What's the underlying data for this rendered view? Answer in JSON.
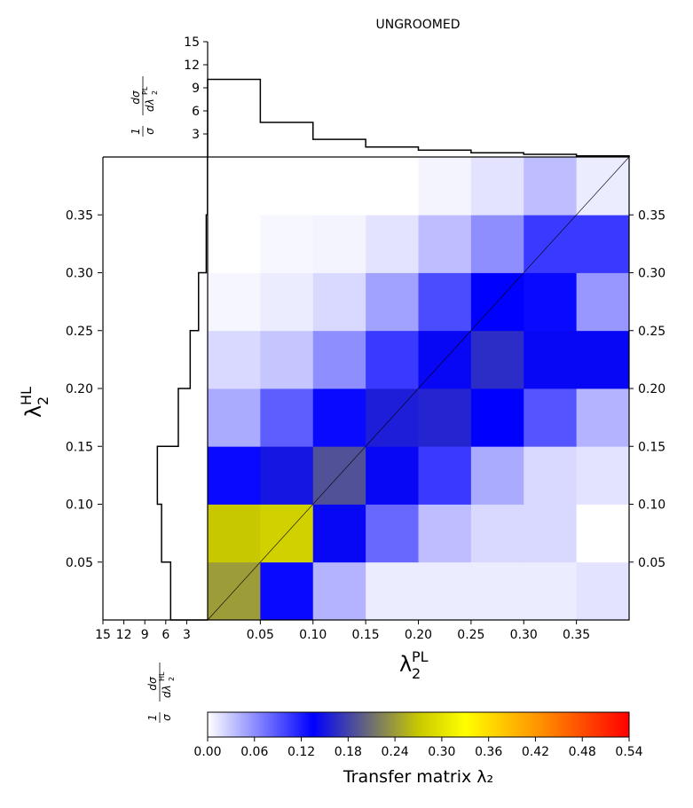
{
  "chart_data": {
    "type": "heatmap",
    "title": "UNGROOMED",
    "xlabel": {
      "base": "λ",
      "sub": "2",
      "sup": "PL"
    },
    "ylabel": {
      "base": "λ",
      "sub": "2",
      "sup": "HL"
    },
    "xlim": [
      0,
      0.4
    ],
    "ylim": [
      0,
      0.4
    ],
    "x_ticks": [
      "0.05",
      "0.10",
      "0.15",
      "0.20",
      "0.25",
      "0.30",
      "0.35"
    ],
    "y_ticks": [
      "0.05",
      "0.10",
      "0.15",
      "0.20",
      "0.25",
      "0.30",
      "0.35"
    ],
    "bin_edges": [
      0,
      0.05,
      0.1,
      0.15,
      0.2,
      0.25,
      0.3,
      0.35,
      0.4
    ],
    "matrix_rows_bottom_to_top": [
      [
        0.24,
        0.13,
        0.04,
        0.01,
        0.01,
        0.01,
        0.01,
        0.015
      ],
      [
        0.27,
        0.28,
        0.14,
        0.08,
        0.035,
        0.02,
        0.02,
        0.0
      ],
      [
        0.13,
        0.15,
        0.19,
        0.14,
        0.105,
        0.045,
        0.02,
        0.015
      ],
      [
        0.045,
        0.085,
        0.13,
        0.155,
        0.16,
        0.135,
        0.09,
        0.04
      ],
      [
        0.02,
        0.03,
        0.06,
        0.105,
        0.14,
        0.165,
        0.14,
        0.14
      ],
      [
        0.005,
        0.01,
        0.02,
        0.05,
        0.095,
        0.135,
        0.13,
        0.055
      ],
      [
        0.0,
        0.004,
        0.006,
        0.015,
        0.035,
        0.06,
        0.105,
        0.105
      ],
      [
        0.0,
        0.0,
        0.0,
        0.0,
        0.006,
        0.015,
        0.035,
        0.01
      ]
    ],
    "diagonal_line": true,
    "top_marginal": {
      "ylabel": {
        "prefix": "1/σ",
        "num": "dσ",
        "den_base": "dλ",
        "den_sub": "2",
        "den_sup": "PL"
      },
      "y_ticks": [
        "3",
        "6",
        "9",
        "12",
        "15"
      ],
      "ylim": [
        0,
        15
      ],
      "values": [
        10.1,
        4.5,
        2.3,
        1.3,
        0.9,
        0.55,
        0.35,
        0.15
      ]
    },
    "left_marginal": {
      "ylabel": {
        "prefix": "1/σ",
        "num": "dσ",
        "den_base": "dλ",
        "den_sub": "2",
        "den_sup": "HL"
      },
      "x_ticks": [
        "15",
        "12",
        "9",
        "6",
        "3"
      ],
      "xlim": [
        15,
        0
      ],
      "values": [
        5.3,
        6.6,
        7.2,
        4.2,
        2.5,
        1.3,
        0.2,
        0.02
      ]
    },
    "colorbar": {
      "label": "Transfer matrix λ₂",
      "min": 0,
      "max": 0.54,
      "ticks": [
        "0.00",
        "0.06",
        "0.12",
        "0.18",
        "0.24",
        "0.30",
        "0.36",
        "0.42",
        "0.48",
        "0.54"
      ],
      "stops": [
        {
          "v": 0.0,
          "color": "#ffffff"
        },
        {
          "v": 0.135,
          "color": "#0000ff"
        },
        {
          "v": 0.27,
          "color": "#c8c800"
        },
        {
          "v": 0.33,
          "color": "#ffff00"
        },
        {
          "v": 0.43,
          "color": "#ff8c00"
        },
        {
          "v": 0.54,
          "color": "#ff0000"
        }
      ]
    }
  }
}
